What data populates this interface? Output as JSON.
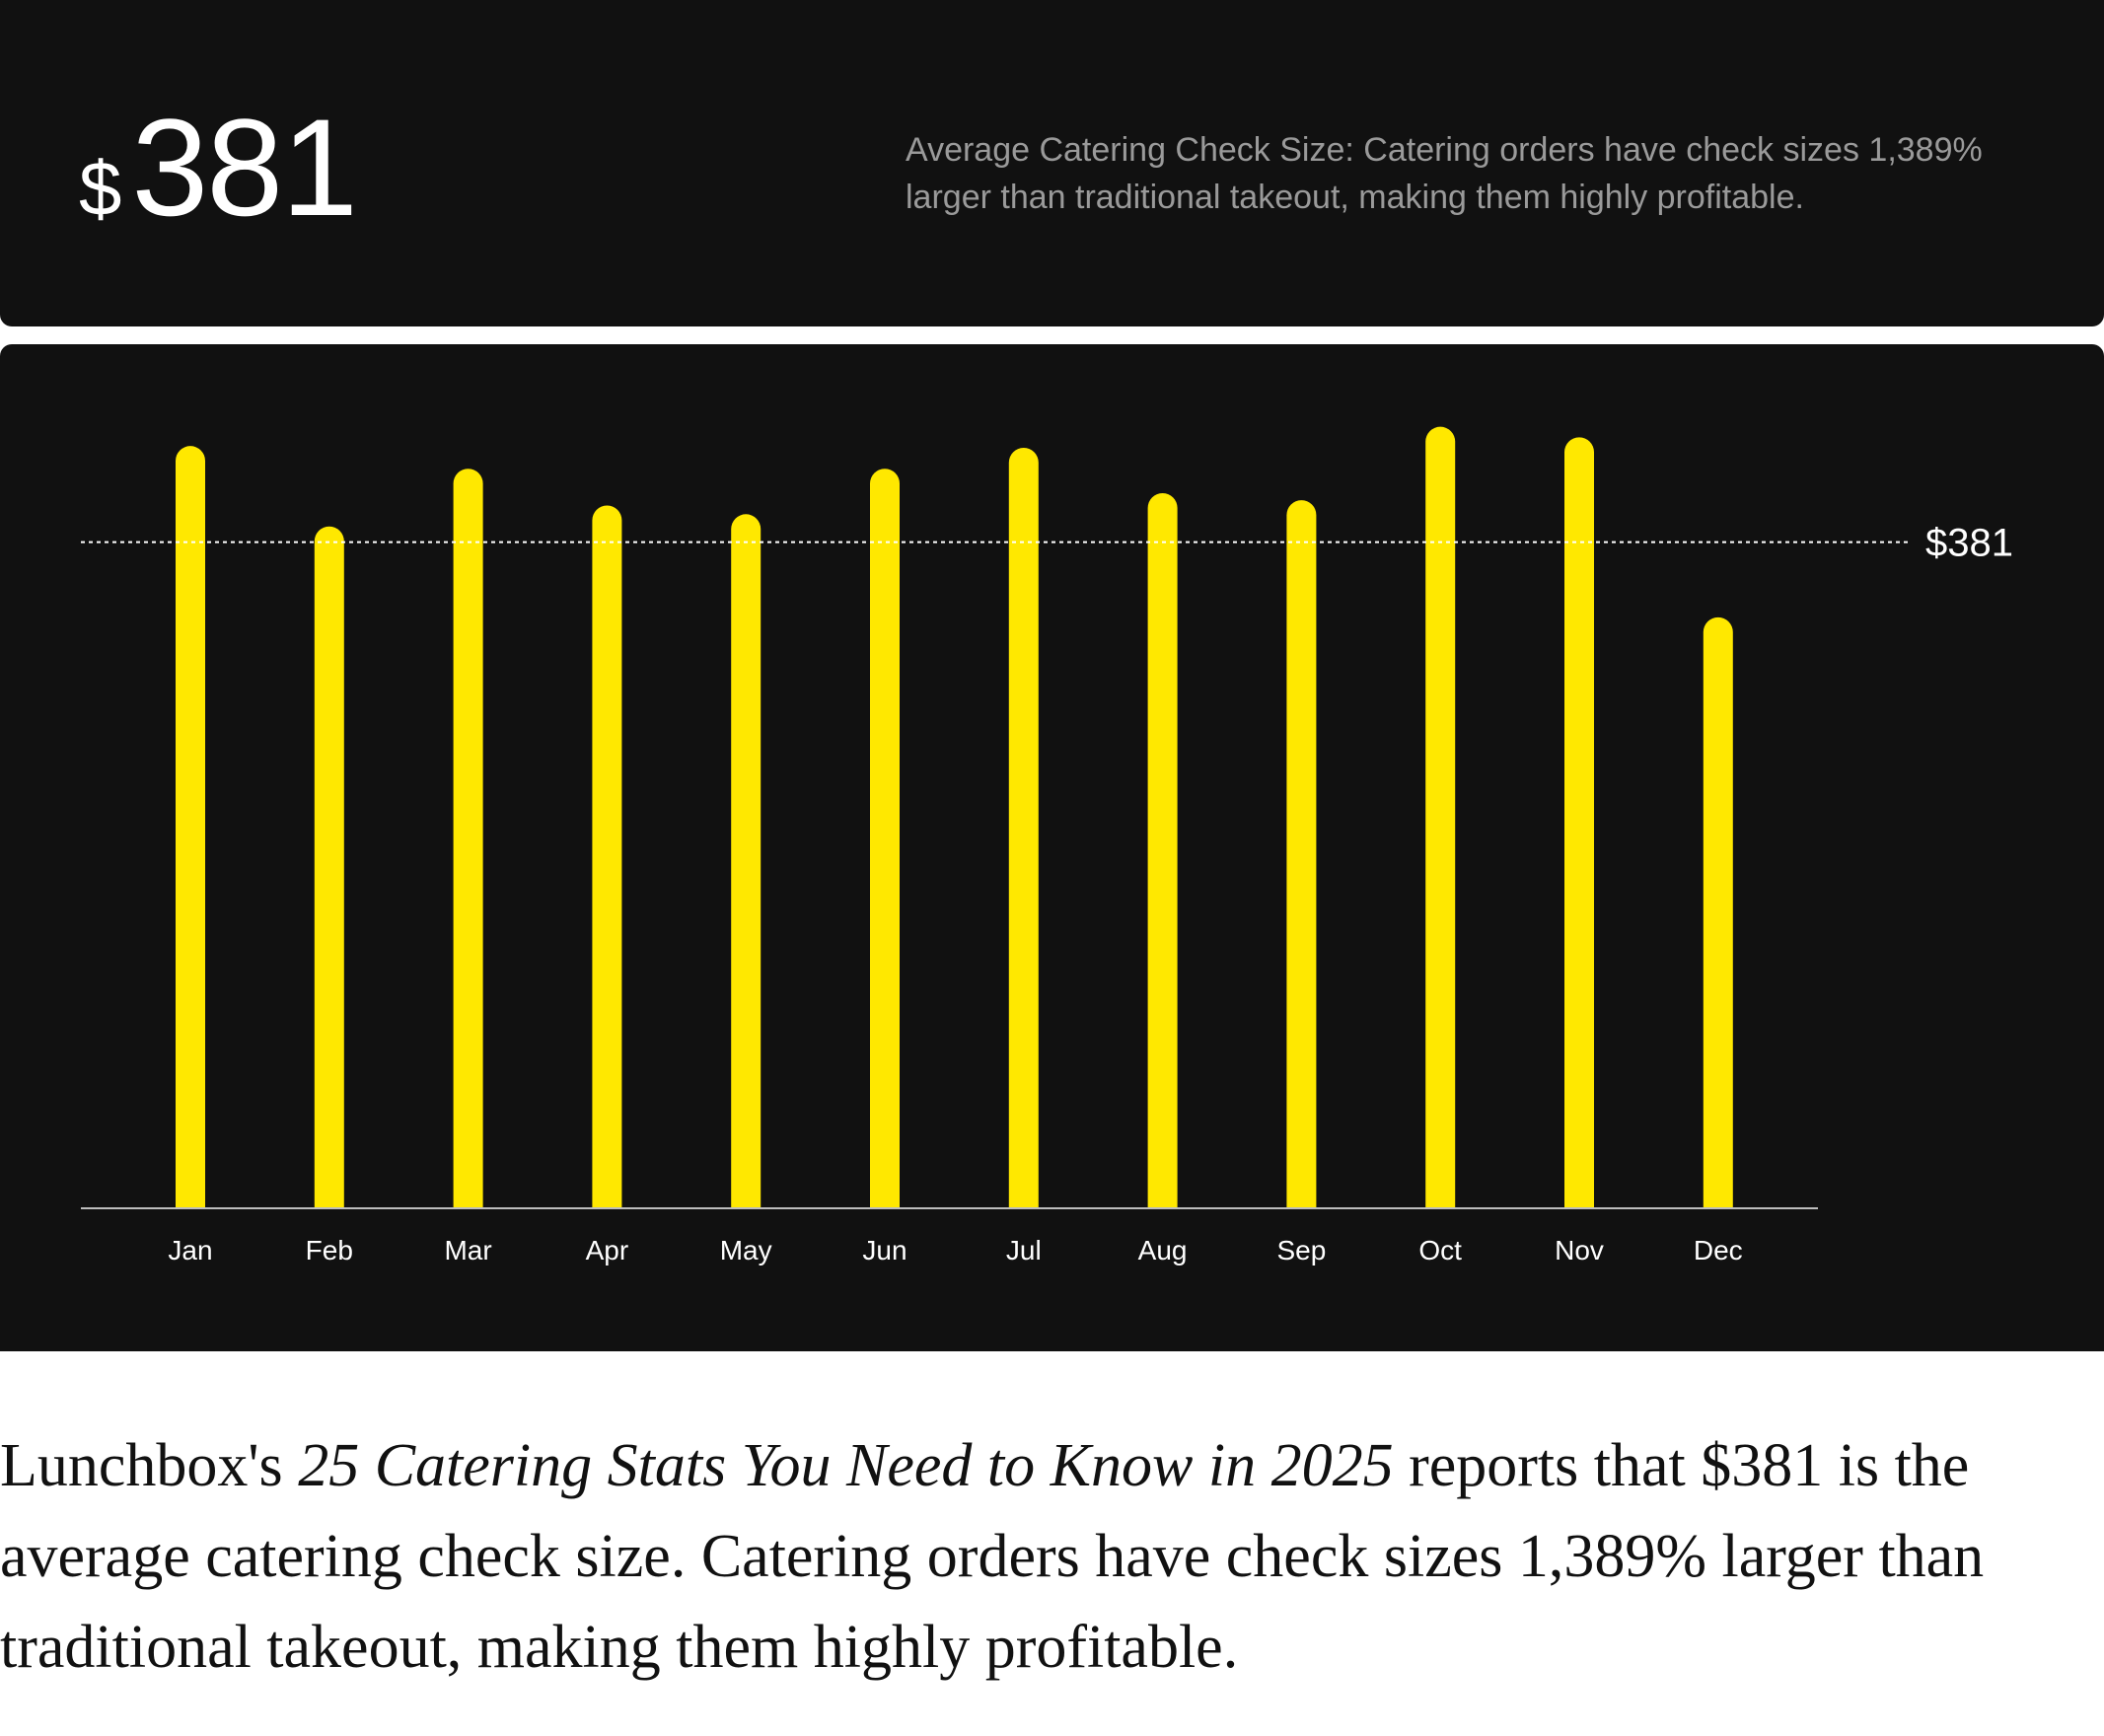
{
  "header": {
    "currency_symbol": "$",
    "value": "381",
    "description": "Average Catering Check Size: Catering orders have check sizes 1,389% larger than traditional takeout, making them highly profitable."
  },
  "colors": {
    "background": "#111111",
    "bar": "#FFE800",
    "text": "#FFFFFF",
    "muted_text": "#9A9A9A"
  },
  "chart_data": {
    "type": "bar",
    "categories": [
      "Jan",
      "Feb",
      "Mar",
      "Apr",
      "May",
      "Jun",
      "Jul",
      "Aug",
      "Sep",
      "Oct",
      "Nov",
      "Dec"
    ],
    "values": [
      436,
      390,
      423,
      402,
      397,
      423,
      435,
      409,
      405,
      447,
      441,
      338
    ],
    "ylim": [
      0,
      466
    ],
    "reference_line": {
      "value": 381,
      "label": "$381",
      "style": "dotted"
    },
    "title": "",
    "xlabel": "",
    "ylabel": "",
    "grid": false,
    "legend": "none"
  },
  "caption": {
    "part1": "Lunchbox's ",
    "italic": "25 Catering Stats You Need to Know in 2025",
    "part2": " reports that $381 is the average catering check size. Catering orders have check sizes 1,389% larger than traditional takeout, making them highly profitable."
  }
}
